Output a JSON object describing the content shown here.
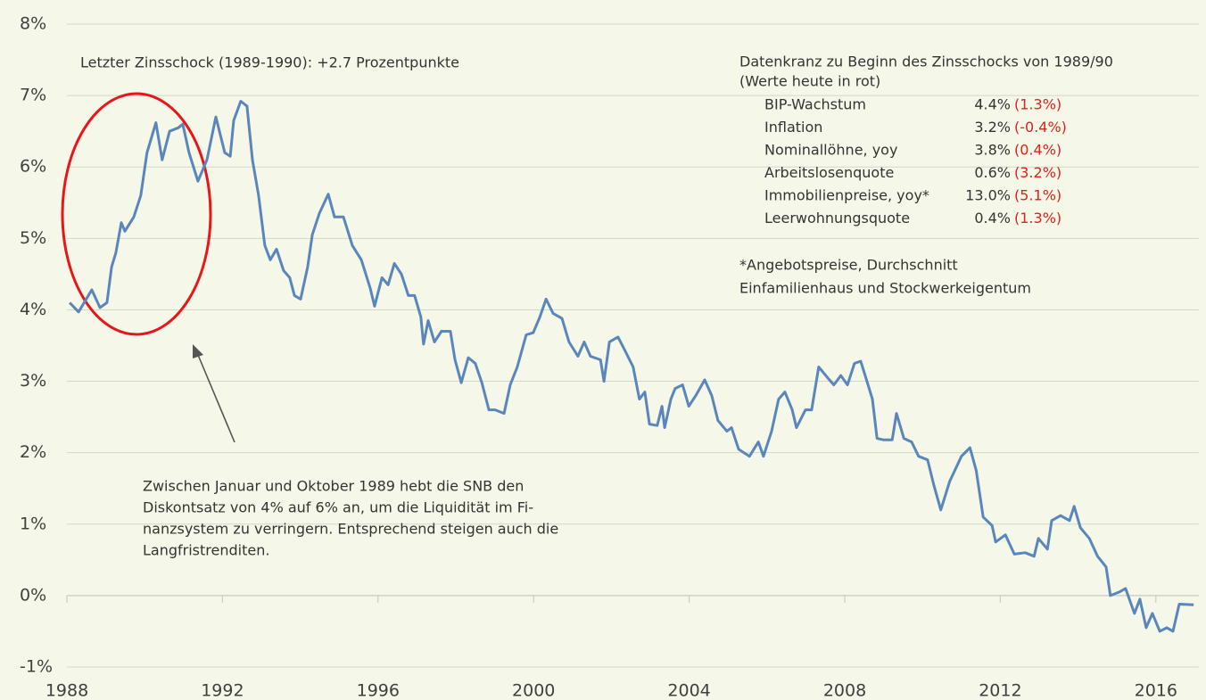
{
  "chart_data": {
    "type": "line",
    "annotations": [
      "Letzter Zinsschock (1989-1990):  +2.7 Prozentpunkte"
    ],
    "callout": [
      "Zwischen Januar und Oktober 1989  hebt die SNB den",
      "Diskontsatz von 4% auf 6%  an, um die Liquidität im Fi-",
      "nanzsystem zu verringern. Entsprechend steigen auch die",
      "Langfristrenditen."
    ],
    "info_box": {
      "title": [
        "Datenkranz zu Beginn des Zinsschocks von 1989/90",
        "(Werte heute in rot)"
      ],
      "rows": [
        {
          "label": "BIP-Wachstum",
          "value": "4.4%",
          "today": "(1.3%)"
        },
        {
          "label": "Inflation",
          "value": "3.2%",
          "today": "(-0.4%)"
        },
        {
          "label": "Nominallöhne, yoy",
          "value": "3.8%",
          "today": "(0.4%)"
        },
        {
          "label": "Arbeitslosenquote",
          "value": "0.6%",
          "today": "(3.2%)"
        },
        {
          "label": "Immobilienpreise, yoy*",
          "value": "13.0%",
          "today": "(5.1%)"
        },
        {
          "label": "Leerwohnungsquote",
          "value": "0.4%",
          "today": "(1.3%)"
        }
      ],
      "footnote": [
        "*Angebotspreise, Durchschnitt",
        "Einfamilienhaus und Stockwerkeigentum"
      ]
    },
    "xlim": [
      1988,
      2017.1
    ],
    "xticks": [
      1988,
      1992,
      1996,
      2000,
      2004,
      2008,
      2012,
      2016
    ],
    "ylim": [
      -1,
      8
    ],
    "yticks": [
      {
        "value": -1,
        "label": "-1%"
      },
      {
        "value": 0,
        "label": "0%"
      },
      {
        "value": 1,
        "label": "1%"
      },
      {
        "value": 2,
        "label": "2%"
      },
      {
        "value": 3,
        "label": "3%"
      },
      {
        "value": 4,
        "label": "4%"
      },
      {
        "value": 5,
        "label": "5%"
      },
      {
        "value": 6,
        "label": "6%"
      },
      {
        "value": 7,
        "label": "7%"
      },
      {
        "value": 8,
        "label": "8%"
      }
    ],
    "grid": true,
    "series": [
      {
        "color": "#5a86bb",
        "x": [
          1988.07,
          1988.3,
          1988.64,
          1988.85,
          1989.03,
          1989.15,
          1989.26,
          1989.4,
          1989.49,
          1989.72,
          1989.9,
          1990.06,
          1990.29,
          1990.45,
          1990.64,
          1990.87,
          1990.98,
          1991.14,
          1991.37,
          1991.6,
          1991.83,
          1992.06,
          1992.2,
          1992.29,
          1992.47,
          1992.63,
          1992.77,
          1992.93,
          1993.09,
          1993.23,
          1993.39,
          1993.57,
          1993.73,
          1993.85,
          1994.01,
          1994.19,
          1994.31,
          1994.49,
          1994.72,
          1994.88,
          1995.11,
          1995.34,
          1995.57,
          1995.8,
          1995.91,
          1996.1,
          1996.26,
          1996.42,
          1996.6,
          1996.78,
          1996.94,
          1997.1,
          1997.17,
          1997.29,
          1997.45,
          1997.63,
          1997.86,
          1997.98,
          1998.14,
          1998.32,
          1998.5,
          1998.67,
          1998.85,
          1999.01,
          1999.24,
          1999.4,
          1999.58,
          1999.81,
          1999.99,
          2000.16,
          2000.32,
          2000.5,
          2000.73,
          2000.91,
          2001.14,
          2001.3,
          2001.46,
          2001.72,
          2001.81,
          2001.95,
          2002.17,
          2002.33,
          2002.56,
          2002.72,
          2002.86,
          2002.98,
          2003.18,
          2003.3,
          2003.37,
          2003.53,
          2003.64,
          2003.83,
          2003.99,
          2004.17,
          2004.4,
          2004.58,
          2004.74,
          2004.97,
          2005.09,
          2005.27,
          2005.55,
          2005.78,
          2005.91,
          2006.12,
          2006.3,
          2006.46,
          2006.65,
          2006.76,
          2006.99,
          2007.15,
          2007.33,
          2007.56,
          2007.72,
          2007.9,
          2008.07,
          2008.25,
          2008.41,
          2008.57,
          2008.71,
          2008.83,
          2008.99,
          2009.22,
          2009.33,
          2009.52,
          2009.72,
          2009.9,
          2010.13,
          2010.29,
          2010.47,
          2010.7,
          2011.0,
          2011.22,
          2011.38,
          2011.56,
          2011.79,
          2011.88,
          2012.13,
          2012.36,
          2012.64,
          2012.87,
          2012.98,
          2013.21,
          2013.32,
          2013.55,
          2013.78,
          2013.9,
          2014.06,
          2014.29,
          2014.5,
          2014.72,
          2014.83,
          2015.06,
          2015.22,
          2015.45,
          2015.59,
          2015.75,
          2015.91,
          2016.1,
          2016.28,
          2016.44,
          2016.6,
          2016.97
        ],
        "values": [
          4.1,
          3.97,
          4.28,
          4.03,
          4.1,
          4.6,
          4.8,
          5.22,
          5.1,
          5.3,
          5.6,
          6.2,
          6.62,
          6.1,
          6.5,
          6.55,
          6.6,
          6.2,
          5.8,
          6.1,
          6.7,
          6.2,
          6.15,
          6.65,
          6.92,
          6.85,
          6.1,
          5.6,
          4.9,
          4.7,
          4.85,
          4.55,
          4.45,
          4.2,
          4.15,
          4.6,
          5.05,
          5.35,
          5.62,
          5.3,
          5.3,
          4.9,
          4.7,
          4.3,
          4.05,
          4.45,
          4.35,
          4.65,
          4.5,
          4.2,
          4.2,
          3.9,
          3.52,
          3.85,
          3.55,
          3.7,
          3.7,
          3.3,
          2.98,
          3.33,
          3.25,
          2.98,
          2.6,
          2.6,
          2.55,
          2.95,
          3.2,
          3.65,
          3.68,
          3.9,
          4.15,
          3.95,
          3.88,
          3.55,
          3.35,
          3.55,
          3.35,
          3.3,
          3.0,
          3.55,
          3.62,
          3.45,
          3.2,
          2.75,
          2.85,
          2.4,
          2.38,
          2.65,
          2.35,
          2.75,
          2.9,
          2.95,
          2.65,
          2.8,
          3.02,
          2.8,
          2.45,
          2.3,
          2.35,
          2.05,
          1.95,
          2.15,
          1.95,
          2.3,
          2.75,
          2.85,
          2.6,
          2.35,
          2.6,
          2.6,
          3.2,
          3.05,
          2.95,
          3.08,
          2.95,
          3.25,
          3.28,
          3.0,
          2.75,
          2.2,
          2.18,
          2.18,
          2.55,
          2.2,
          2.15,
          1.95,
          1.9,
          1.55,
          1.2,
          1.6,
          1.95,
          2.07,
          1.75,
          1.1,
          0.98,
          0.75,
          0.85,
          0.58,
          0.6,
          0.55,
          0.8,
          0.65,
          1.05,
          1.12,
          1.05,
          1.25,
          0.95,
          0.8,
          0.55,
          0.4,
          0.0,
          0.05,
          0.1,
          -0.25,
          -0.05,
          -0.45,
          -0.25,
          -0.5,
          -0.45,
          -0.5,
          -0.12,
          -0.13
        ]
      }
    ]
  }
}
